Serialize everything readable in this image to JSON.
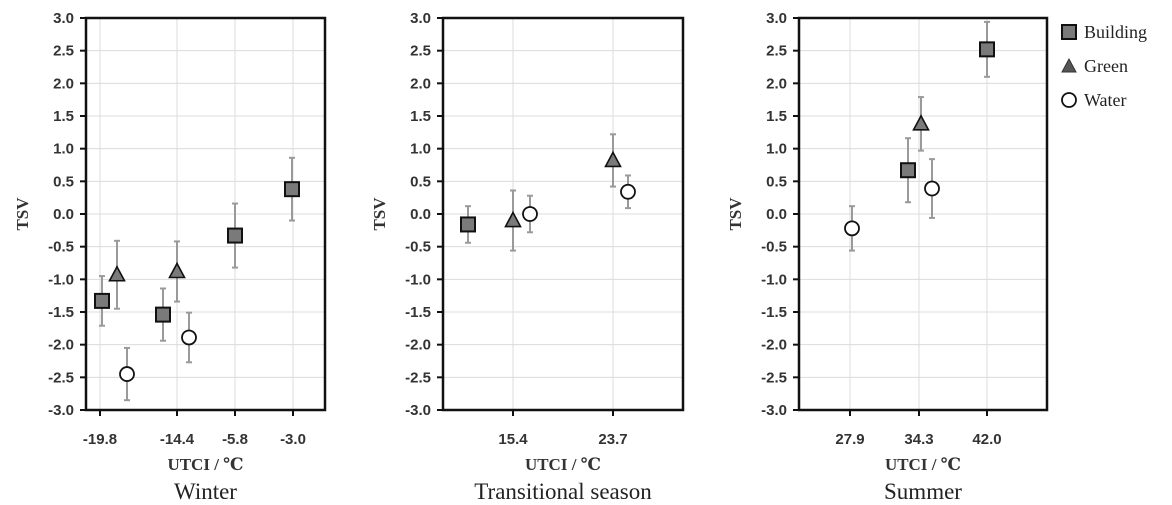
{
  "chart_data": [
    {
      "type": "scatter",
      "title": "Winter",
      "xlabel": "UTCI / ℃",
      "ylabel": "TSV",
      "ylim": [
        -3.0,
        3.0
      ],
      "yticks": [
        "3.0",
        "2.5",
        "2.0",
        "1.5",
        "1.0",
        "0.5",
        "0.0",
        "-0.5",
        "-1.0",
        "-1.5",
        "-2.0",
        "-2.5",
        "-3.0"
      ],
      "xticks": [
        "-19.8",
        "-14.4",
        "-5.8",
        "-3.0"
      ],
      "grid": true,
      "series": [
        {
          "name": "Building",
          "marker": "square",
          "points": [
            {
              "x": "-19.8",
              "y": -1.33,
              "err": 0.38
            },
            {
              "x": "-14.4",
              "y": -1.54,
              "err": 0.4
            },
            {
              "x": "-5.8",
              "y": -0.33,
              "err": 0.49
            },
            {
              "x": "-3.0",
              "y": 0.38,
              "err": 0.48
            }
          ]
        },
        {
          "name": "Green",
          "marker": "triangle",
          "points": [
            {
              "x": "-19.8",
              "y": -0.93,
              "err": 0.52
            },
            {
              "x": "-14.4",
              "y": -0.88,
              "err": 0.46
            }
          ]
        },
        {
          "name": "Water",
          "marker": "circle",
          "points": [
            {
              "x": "-19.8",
              "y": -2.45,
              "err": 0.4
            },
            {
              "x": "-14.4",
              "y": -1.89,
              "err": 0.38
            }
          ]
        }
      ]
    },
    {
      "type": "scatter",
      "title": "Transitional season",
      "xlabel": "UTCI / ℃",
      "ylabel": "TSV",
      "ylim": [
        -3.0,
        3.0
      ],
      "yticks": [
        "3.0",
        "2.5",
        "2.0",
        "1.5",
        "1.0",
        "0.5",
        "0.0",
        "-0.5",
        "-1.0",
        "-1.5",
        "-2.0",
        "-2.5",
        "-3.0"
      ],
      "xticks": [
        "15.4",
        "23.7"
      ],
      "grid": true,
      "series": [
        {
          "name": "Building",
          "marker": "square",
          "points": [
            {
              "x": "15.4",
              "y": -0.16,
              "err": 0.28
            }
          ]
        },
        {
          "name": "Green",
          "marker": "triangle",
          "points": [
            {
              "x": "15.4",
              "y": -0.1,
              "err": 0.46
            },
            {
              "x": "23.7",
              "y": 0.82,
              "err": 0.4
            }
          ]
        },
        {
          "name": "Water",
          "marker": "circle",
          "points": [
            {
              "x": "15.4",
              "y": 0.0,
              "err": 0.28
            },
            {
              "x": "23.7",
              "y": 0.34,
              "err": 0.25
            }
          ]
        }
      ]
    },
    {
      "type": "scatter",
      "title": "Summer",
      "xlabel": "UTCI / ℃",
      "ylabel": "TSV",
      "ylim": [
        -3.0,
        3.0
      ],
      "yticks": [
        "3.0",
        "2.5",
        "2.0",
        "1.5",
        "1.0",
        "0.5",
        "0.0",
        "-0.5",
        "-1.0",
        "-1.5",
        "-2.0",
        "-2.5",
        "-3.0"
      ],
      "xticks": [
        "27.9",
        "34.3",
        "42.0"
      ],
      "grid": true,
      "series": [
        {
          "name": "Building",
          "marker": "square",
          "points": [
            {
              "x": "34.3",
              "y": 0.67,
              "err": 0.49
            },
            {
              "x": "42.0",
              "y": 2.52,
              "err": 0.42
            }
          ]
        },
        {
          "name": "Green",
          "marker": "triangle",
          "points": [
            {
              "x": "34.3",
              "y": 1.38,
              "err": 0.41
            }
          ]
        },
        {
          "name": "Water",
          "marker": "circle",
          "points": [
            {
              "x": "27.9",
              "y": -0.22,
              "err": 0.34
            },
            {
              "x": "34.3",
              "y": 0.39,
              "err": 0.45
            }
          ]
        }
      ]
    }
  ],
  "legend": {
    "placement": "right",
    "items": [
      {
        "label": "Building",
        "marker": "square"
      },
      {
        "label": "Green",
        "marker": "triangle"
      },
      {
        "label": "Water",
        "marker": "circle"
      }
    ]
  },
  "colors": {
    "marker_fill": "#7a7a7a",
    "open_fill": "#ffffff",
    "stroke": "#111111",
    "errorbar": "#9a9a9a",
    "grid": "#dcdcdc"
  }
}
